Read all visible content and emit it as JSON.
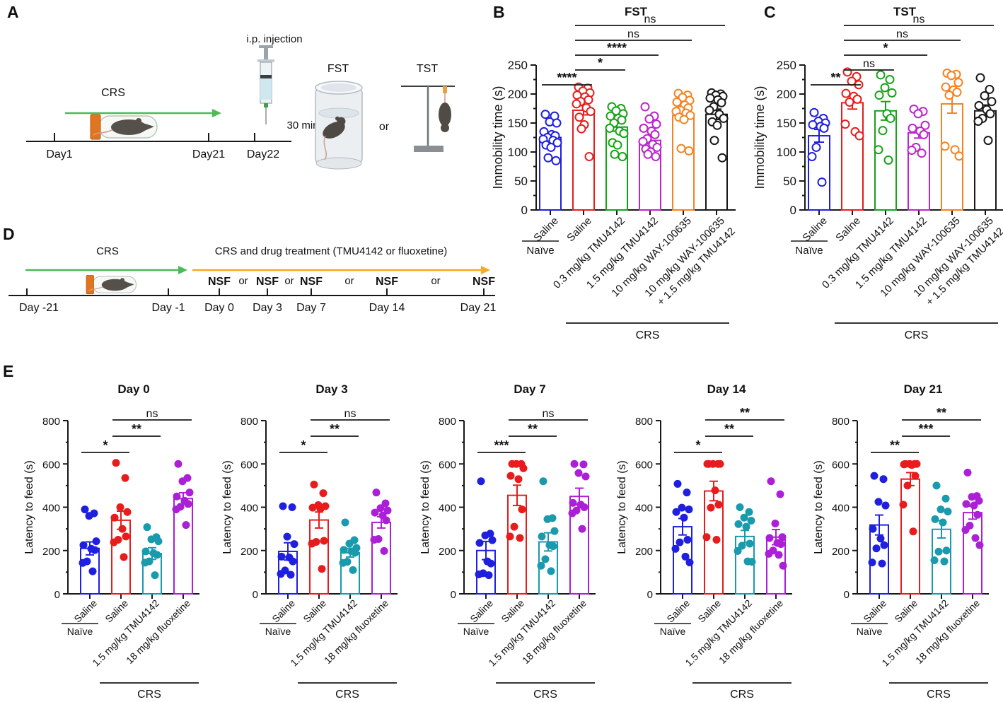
{
  "panel_letters": [
    "A",
    "B",
    "C",
    "D",
    "E"
  ],
  "panel_a": {
    "crs_label": "CRS",
    "ip_injection": "i.p. injection",
    "delay": "30 min",
    "fst_label": "FST",
    "tst_label": "TST",
    "or_label": "or",
    "timeline_days": [
      "Day1",
      "Day21",
      "Day22"
    ]
  },
  "panel_d": {
    "crs_label": "CRS",
    "treatment_label": "CRS and drug treatment (TMU4142 or fluoxetine)",
    "nsf": "NSF",
    "or_label": "or",
    "nsf_color": "#29a3ec",
    "timeline_days": [
      "Day -21",
      "Day -1",
      "Day 0",
      "Day 3",
      "Day 7",
      "Day 14",
      "Day 21"
    ]
  },
  "chart_data": [
    {
      "panel": "B",
      "type": "bar",
      "layout": "six",
      "xshift": 0,
      "title": "FST",
      "ylabel": "Immobility time (s)",
      "ylim": [
        0,
        250
      ],
      "yticks": [
        0,
        50,
        100,
        150,
        200,
        250
      ],
      "minor_step": 25,
      "point_style": "open",
      "crs_label": "CRS",
      "crs_span": [
        1,
        5
      ],
      "groups": [
        {
          "label": "Saline",
          "sublabel": "Naïve",
          "color": "#1f1fe0",
          "mean": 125,
          "sem": 6,
          "points": [
            165,
            162,
            152,
            150,
            135,
            130,
            128,
            125,
            122,
            120,
            116,
            112,
            108,
            90,
            85
          ]
        },
        {
          "label": "Saline",
          "color": "#e81c1c",
          "mean": 172,
          "sem": 8,
          "points": [
            212,
            210,
            205,
            202,
            198,
            195,
            190,
            187,
            183,
            176,
            170,
            160,
            147,
            140,
            92
          ]
        },
        {
          "label": "0.3 mg/kg TMU4142",
          "color": "#17a317",
          "mean": 143,
          "sem": 7,
          "points": [
            178,
            175,
            171,
            166,
            162,
            158,
            155,
            150,
            141,
            136,
            132,
            116,
            112,
            96,
            92
          ]
        },
        {
          "label": "1.5 mg/kg TMU4142",
          "color": "#bc24ce",
          "mean": 120,
          "sem": 6,
          "points": [
            178,
            162,
            157,
            148,
            141,
            136,
            130,
            123,
            118,
            113,
            108,
            105,
            100,
            96,
            92
          ]
        },
        {
          "label": "10 mg/kg WAY-100635",
          "color": "#f58220",
          "mean": 163,
          "sem": 7,
          "points": [
            201,
            198,
            194,
            189,
            186,
            181,
            176,
            172,
            170,
            167,
            163,
            160,
            156,
            106,
            102
          ]
        },
        {
          "label": [
            "10 mg/kg WAY-100635",
            "+ 1.5 mg/kg TMU4142"
          ],
          "color": "#181818",
          "mean": 165,
          "sem": 9,
          "points": [
            202,
            200,
            198,
            196,
            193,
            190,
            185,
            178,
            172,
            165,
            158,
            152,
            146,
            120,
            90
          ]
        }
      ],
      "significance": [
        {
          "from": 0,
          "to": 1,
          "label": "****"
        },
        {
          "from": 1,
          "to": 2,
          "label": "*"
        },
        {
          "from": 1,
          "to": 3,
          "label": "****"
        },
        {
          "from": 1,
          "to": 4,
          "label": "ns"
        },
        {
          "from": 1,
          "to": 5,
          "label": "ns"
        }
      ]
    },
    {
      "panel": "C",
      "type": "bar",
      "layout": "six",
      "xshift": 10,
      "title": "TST",
      "ylabel": "Immobility time (s)",
      "ylim": [
        0,
        250
      ],
      "yticks": [
        0,
        50,
        100,
        150,
        200,
        250
      ],
      "minor_step": 25,
      "point_style": "open",
      "crs_label": "CRS",
      "crs_span": [
        1,
        5
      ],
      "groups": [
        {
          "label": "Saline",
          "sublabel": "Naïve",
          "color": "#1f1fe0",
          "mean": 128,
          "sem": 11,
          "points": [
            168,
            158,
            153,
            150,
            147,
            144,
            141,
            108,
            92,
            48
          ]
        },
        {
          "label": "Saline",
          "color": "#e81c1c",
          "mean": 185,
          "sem": 11,
          "points": [
            238,
            230,
            222,
            216,
            201,
            196,
            191,
            186,
            148,
            135,
            128
          ]
        },
        {
          "label": "0.3 mg/kg TMU4142",
          "color": "#17a317",
          "mean": 171,
          "sem": 16,
          "points": [
            233,
            225,
            211,
            202,
            198,
            166,
            158,
            137,
            104,
            86
          ]
        },
        {
          "label": "1.5 mg/kg TMU4142",
          "color": "#bc24ce",
          "mean": 133,
          "sem": 9,
          "points": [
            174,
            170,
            166,
            146,
            141,
            136,
            130,
            108,
            103,
            98
          ]
        },
        {
          "label": "10 mg/kg WAY-100635",
          "color": "#f58220",
          "mean": 183,
          "sem": 16,
          "points": [
            236,
            234,
            232,
            220,
            212,
            207,
            203,
            198,
            110,
            104,
            93
          ]
        },
        {
          "label": [
            "10 mg/kg WAY-100635",
            "+ 1.5 mg/kg TMU4142"
          ],
          "color": "#181818",
          "mean": 171,
          "sem": 10,
          "points": [
            228,
            208,
            197,
            187,
            180,
            173,
            166,
            158,
            153,
            120
          ]
        }
      ],
      "significance": [
        {
          "from": 0,
          "to": 1,
          "label": "**"
        },
        {
          "from": 1,
          "to": 2,
          "label": "ns"
        },
        {
          "from": 1,
          "to": 3,
          "label": "*"
        },
        {
          "from": 1,
          "to": 4,
          "label": "ns"
        },
        {
          "from": 1,
          "to": 5,
          "label": "ns"
        }
      ]
    },
    {
      "panel": "E1",
      "type": "bar",
      "layout": "four",
      "xshift": 0,
      "title": "Day 0",
      "ylabel": "Latency to feed (s)",
      "ylim": [
        0,
        800
      ],
      "yticks": [
        0,
        200,
        400,
        600,
        800
      ],
      "minor_step": 100,
      "point_style": "filled",
      "crs_label": "CRS",
      "crs_span": [
        1,
        3
      ],
      "groups": [
        {
          "label": "Saline",
          "sublabel": "Naïve",
          "color": "#1f1fe0",
          "mean": 210,
          "sem": 30,
          "points": [
            390,
            372,
            360,
            243,
            225,
            208,
            202,
            150,
            143,
            104
          ]
        },
        {
          "label": "Saline",
          "color": "#e81c1c",
          "mean": 340,
          "sem": 42,
          "points": [
            605,
            535,
            400,
            378,
            352,
            300,
            265,
            250,
            238,
            170
          ]
        },
        {
          "label": "1.5 mg/kg TMU4142",
          "color": "#1a9aad",
          "mean": 186,
          "sem": 27,
          "points": [
            308,
            262,
            252,
            243,
            196,
            188,
            180,
            150,
            144,
            86
          ]
        },
        {
          "label": "18 mg/kg fluoxetine",
          "color": "#ab1fd6",
          "mean": 440,
          "sem": 27,
          "points": [
            600,
            535,
            520,
            468,
            450,
            430,
            415,
            402,
            390,
            318
          ]
        }
      ],
      "significance": [
        {
          "from": 0,
          "to": 1,
          "label": "*"
        },
        {
          "from": 1,
          "to": 2,
          "label": "**"
        },
        {
          "from": 1,
          "to": 3,
          "label": "ns"
        }
      ]
    },
    {
      "panel": "E2",
      "type": "bar",
      "layout": "four",
      "xshift": 0,
      "title": "Day 3",
      "ylabel": "Latency to feed (s)",
      "ylim": [
        0,
        800
      ],
      "yticks": [
        0,
        200,
        400,
        600,
        800
      ],
      "minor_step": 100,
      "point_style": "filled",
      "crs_label": "CRS",
      "crs_span": [
        1,
        3
      ],
      "groups": [
        {
          "label": "Saline",
          "sublabel": "Naïve",
          "color": "#1f1fe0",
          "mean": 196,
          "sem": 40,
          "points": [
            405,
            400,
            264,
            230,
            172,
            168,
            150,
            108,
            92,
            88
          ]
        },
        {
          "label": "Saline",
          "color": "#e81c1c",
          "mean": 341,
          "sem": 37,
          "points": [
            505,
            465,
            410,
            405,
            398,
            392,
            245,
            240,
            232,
            115
          ]
        },
        {
          "label": "1.5 mg/kg TMU4142",
          "color": "#1a9aad",
          "mean": 190,
          "sem": 20,
          "points": [
            330,
            248,
            232,
            212,
            203,
            196,
            190,
            148,
            143,
            110
          ]
        },
        {
          "label": "18 mg/kg fluoxetine",
          "color": "#ab1fd6",
          "mean": 330,
          "sem": 26,
          "points": [
            468,
            418,
            396,
            385,
            375,
            362,
            340,
            253,
            250,
            198
          ]
        }
      ],
      "significance": [
        {
          "from": 0,
          "to": 1,
          "label": "*"
        },
        {
          "from": 1,
          "to": 2,
          "label": "**"
        },
        {
          "from": 1,
          "to": 3,
          "label": "ns"
        }
      ]
    },
    {
      "panel": "E3",
      "type": "bar",
      "layout": "four",
      "xshift": 0,
      "title": "Day 7",
      "ylabel": "Latency to feed (s)",
      "ylim": [
        0,
        800
      ],
      "yticks": [
        0,
        200,
        400,
        600,
        800
      ],
      "minor_step": 100,
      "point_style": "filled",
      "crs_label": "CRS",
      "crs_span": [
        1,
        3
      ],
      "groups": [
        {
          "label": "Saline",
          "sublabel": "Naïve",
          "color": "#1f1fe0",
          "mean": 200,
          "sem": 42,
          "points": [
            520,
            278,
            270,
            248,
            235,
            150,
            140,
            95,
            90,
            86
          ]
        },
        {
          "label": "Saline",
          "color": "#e81c1c",
          "mean": 455,
          "sem": 47,
          "points": [
            600,
            600,
            600,
            580,
            545,
            530,
            390,
            310,
            265,
            258
          ]
        },
        {
          "label": "1.5 mg/kg TMU4142",
          "color": "#1a9aad",
          "mean": 240,
          "sem": 42,
          "points": [
            520,
            350,
            345,
            290,
            265,
            225,
            220,
            160,
            130,
            105
          ]
        },
        {
          "label": "18 mg/kg fluoxetine",
          "color": "#ab1fd6",
          "mean": 450,
          "sem": 38,
          "points": [
            600,
            598,
            558,
            542,
            420,
            412,
            400,
            385,
            372,
            300
          ]
        }
      ],
      "significance": [
        {
          "from": 0,
          "to": 1,
          "label": "***"
        },
        {
          "from": 1,
          "to": 2,
          "label": "**"
        },
        {
          "from": 1,
          "to": 3,
          "label": "ns"
        }
      ]
    },
    {
      "panel": "E4",
      "type": "bar",
      "layout": "four",
      "xshift": 0,
      "title": "Day 14",
      "ylabel": "Latency to feed (s)",
      "ylim": [
        0,
        800
      ],
      "yticks": [
        0,
        200,
        400,
        600,
        800
      ],
      "minor_step": 100,
      "point_style": "filled",
      "crs_label": "CRS",
      "crs_span": [
        1,
        3
      ],
      "groups": [
        {
          "label": "Saline",
          "sublabel": "Naïve",
          "color": "#1f1fe0",
          "mean": 310,
          "sem": 38,
          "points": [
            508,
            468,
            398,
            390,
            378,
            352,
            250,
            238,
            208,
            172,
            145
          ]
        },
        {
          "label": "Saline",
          "color": "#e81c1c",
          "mean": 475,
          "sem": 45,
          "points": [
            600,
            600,
            600,
            600,
            600,
            478,
            412,
            398,
            262,
            250
          ]
        },
        {
          "label": "1.5 mg/kg TMU4142",
          "color": "#1a9aad",
          "mean": 265,
          "sem": 28,
          "points": [
            400,
            378,
            352,
            338,
            322,
            310,
            232,
            222,
            198,
            150,
            148
          ]
        },
        {
          "label": "18 mg/kg fluoxetine",
          "color": "#ab1fd6",
          "mean": 262,
          "sem": 35,
          "points": [
            520,
            460,
            325,
            262,
            258,
            235,
            230,
            200,
            185,
            180,
            130
          ]
        }
      ],
      "significance": [
        {
          "from": 0,
          "to": 1,
          "label": "*"
        },
        {
          "from": 1,
          "to": 2,
          "label": "**"
        },
        {
          "from": 1,
          "to": 3,
          "label": "**"
        }
      ]
    },
    {
      "panel": "E5",
      "type": "bar",
      "layout": "four",
      "xshift": 0,
      "title": "Day 21",
      "ylabel": "Latency to feed (s)",
      "ylim": [
        0,
        800
      ],
      "yticks": [
        0,
        200,
        400,
        600,
        800
      ],
      "minor_step": 100,
      "point_style": "filled",
      "crs_label": "CRS",
      "crs_span": [
        1,
        3
      ],
      "groups": [
        {
          "label": "Saline",
          "sublabel": "Naïve",
          "color": "#1f1fe0",
          "mean": 318,
          "sem": 46,
          "points": [
            545,
            530,
            425,
            408,
            300,
            255,
            225,
            210,
            145,
            140
          ]
        },
        {
          "label": "Saline",
          "color": "#e81c1c",
          "mean": 530,
          "sem": 30,
          "points": [
            600,
            600,
            600,
            600,
            598,
            595,
            545,
            500,
            412,
            288
          ]
        },
        {
          "label": "1.5 mg/kg TMU4142",
          "color": "#1a9aad",
          "mean": 298,
          "sem": 40,
          "points": [
            500,
            440,
            390,
            380,
            345,
            330,
            200,
            195,
            155,
            150
          ]
        },
        {
          "label": "18 mg/kg fluoxetine",
          "color": "#ab1fd6",
          "mean": 375,
          "sem": 30,
          "points": [
            560,
            452,
            448,
            430,
            415,
            408,
            365,
            315,
            295,
            258,
            225
          ]
        }
      ],
      "significance": [
        {
          "from": 0,
          "to": 1,
          "label": "**"
        },
        {
          "from": 1,
          "to": 2,
          "label": "***"
        },
        {
          "from": 1,
          "to": 3,
          "label": "**"
        }
      ]
    }
  ]
}
